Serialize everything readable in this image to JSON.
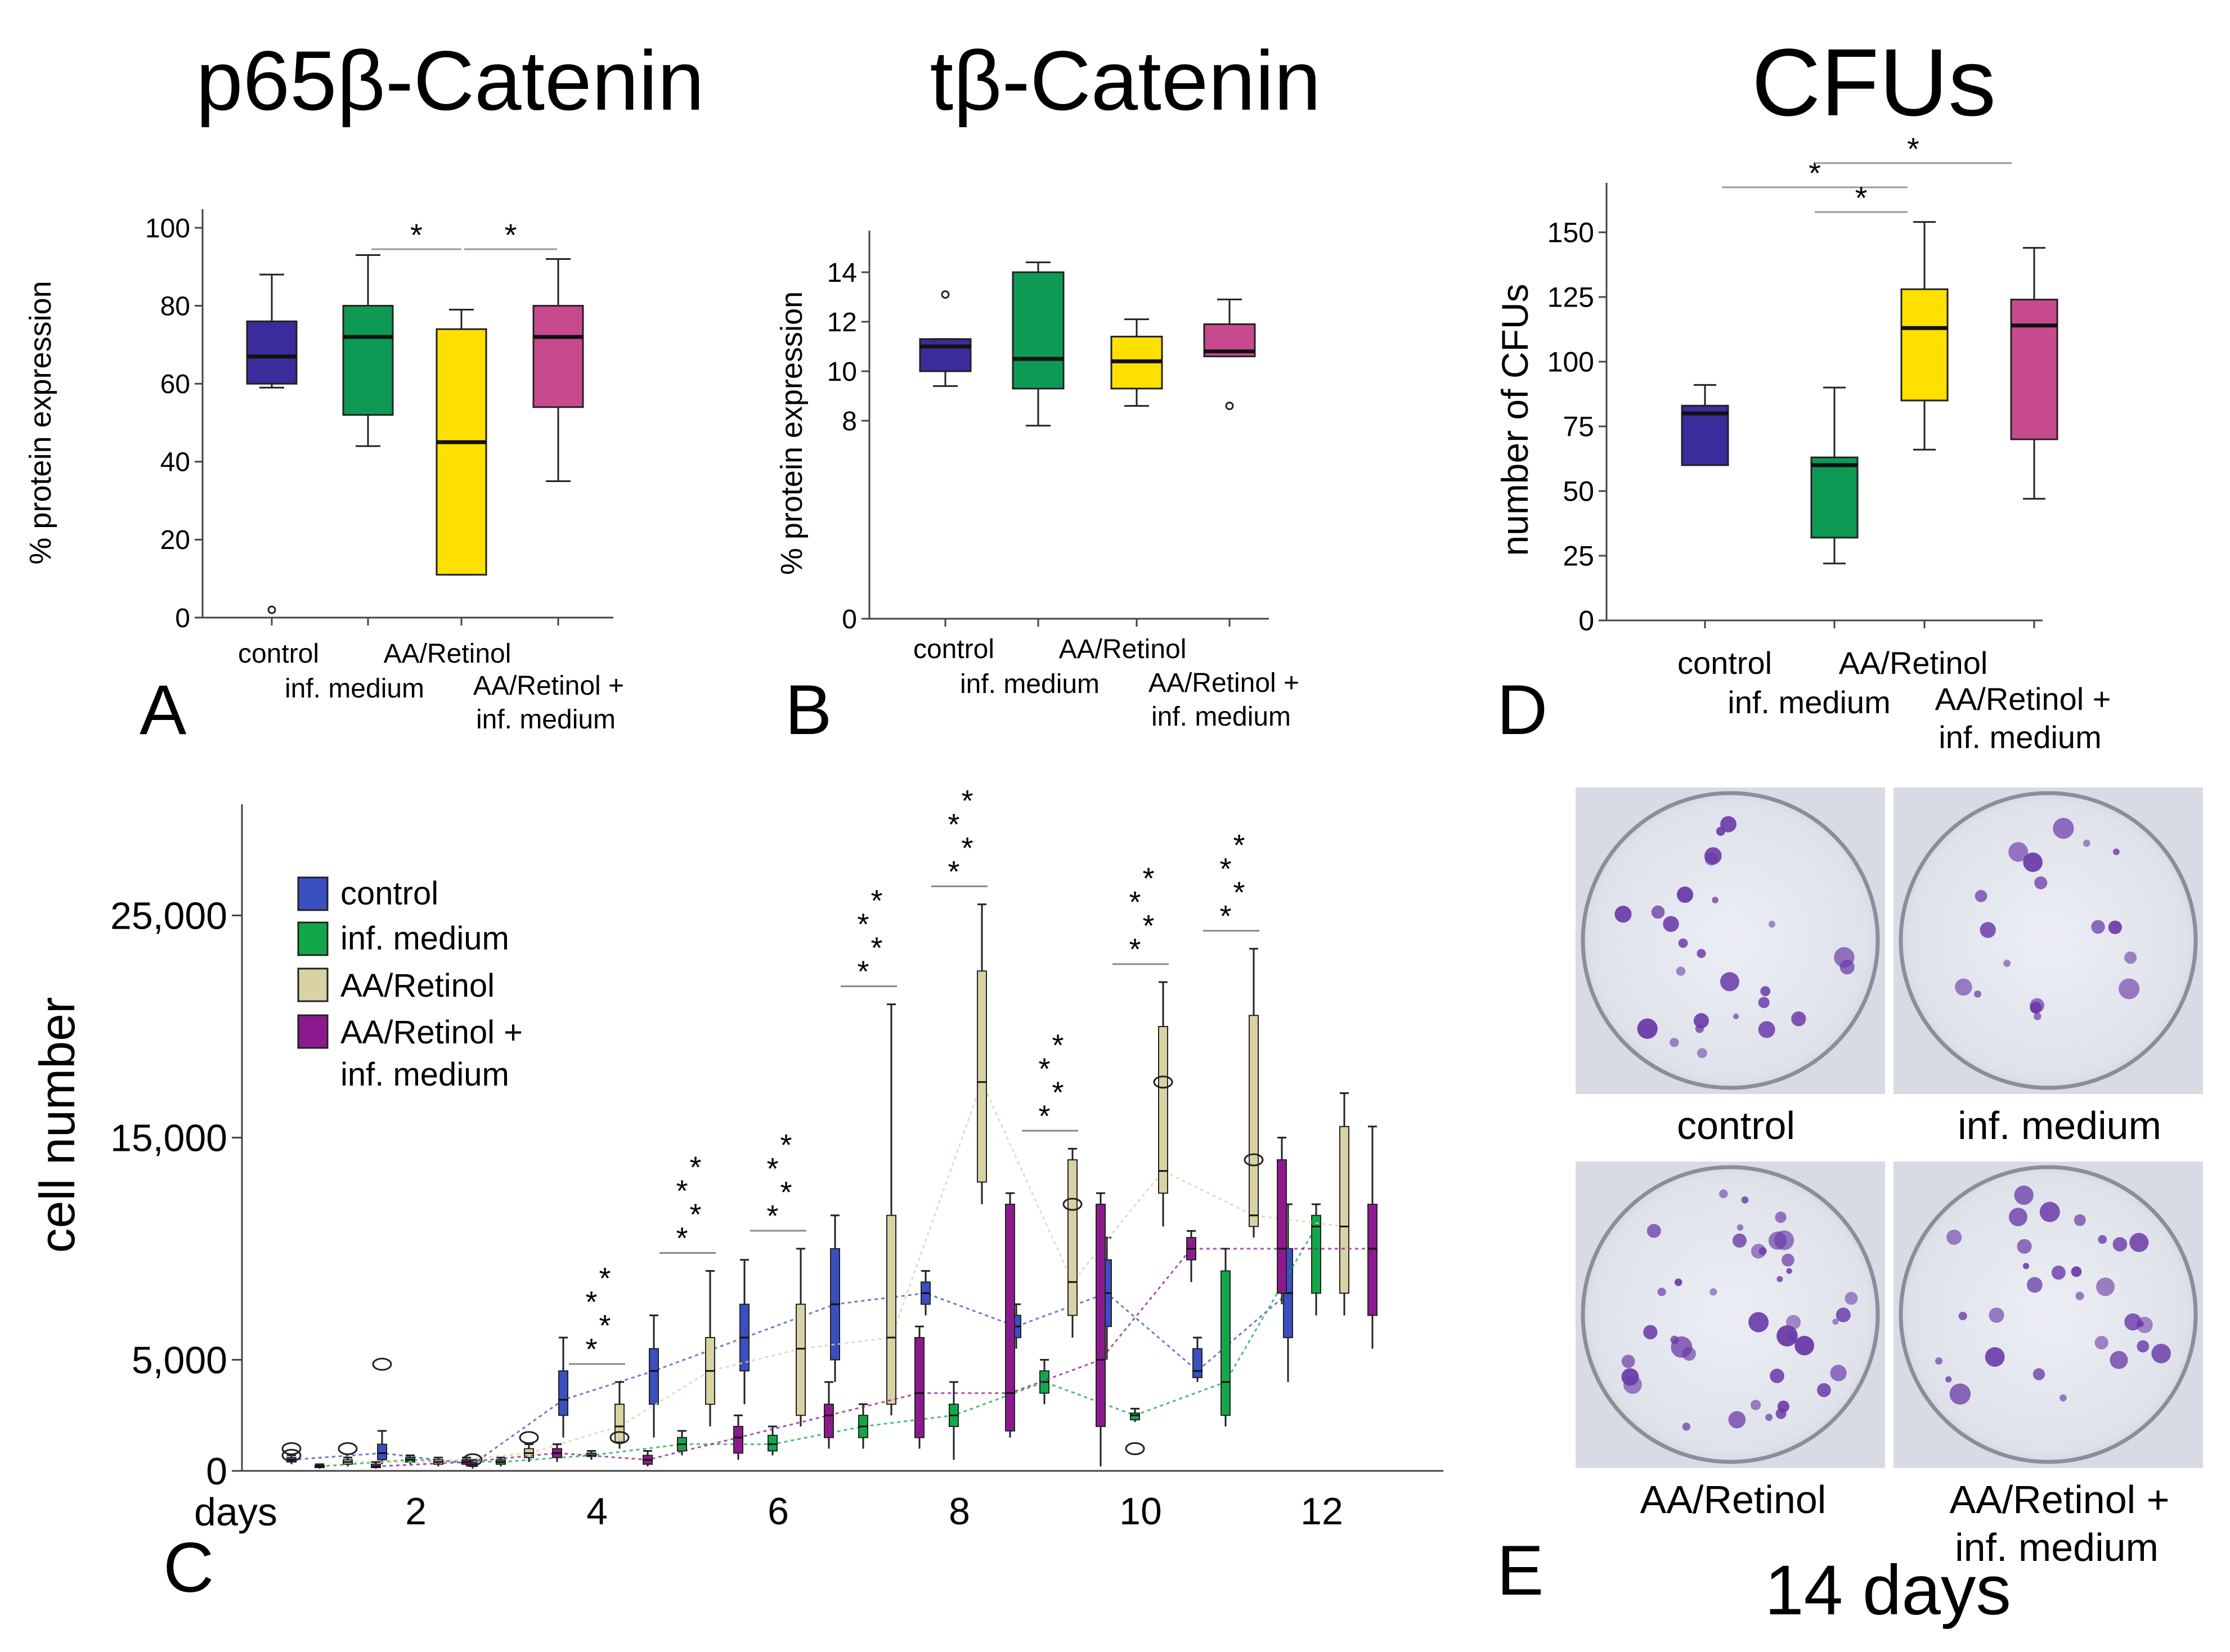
{
  "colors": {
    "control": "#3B2C9C",
    "inf_medium": "#0E9A55",
    "aa_retinol": "#FFE000",
    "aa_retinol_inf": "#C84A8E",
    "c_control": "#3A4FC0",
    "c_inf": "#12A84A",
    "c_aa": "#D8D2A4",
    "c_aainf": "#8C1A8E"
  },
  "panel_letters": {
    "a": "A",
    "b": "B",
    "c": "C",
    "d": "D",
    "e": "E"
  },
  "chart_data": [
    {
      "id": "A",
      "type": "box",
      "title": "p65β-Catenin",
      "ylabel": "% protein expression",
      "ylim": [
        0,
        100
      ],
      "yticks": [
        0,
        20,
        40,
        60,
        80,
        100
      ],
      "groups": [
        {
          "name": "control",
          "min": 59,
          "q1": 60,
          "median": 67,
          "q3": 76,
          "max": 88,
          "outliers": [
            2
          ]
        },
        {
          "name": "inf. medium",
          "min": 44,
          "q1": 52,
          "median": 72,
          "q3": 80,
          "max": 93,
          "outliers": []
        },
        {
          "name": "AA/Retinol",
          "min": 11,
          "q1": 11,
          "median": 45,
          "q3": 74,
          "max": 79,
          "outliers": []
        },
        {
          "name": "AA/Retinol + inf. medium",
          "min": 35,
          "q1": 54,
          "median": 72,
          "q3": 80,
          "max": 92,
          "outliers": []
        }
      ],
      "xlabels": [
        "control",
        "inf. medium",
        "AA/Retinol",
        "AA/Retinol +",
        "inf. medium"
      ],
      "significance": [
        "*",
        "*"
      ]
    },
    {
      "id": "B",
      "type": "box",
      "title": "tβ-Catenin",
      "ylabel": "% protein expression",
      "ylim": [
        0,
        15
      ],
      "yticks": [
        0,
        8,
        10,
        12,
        14
      ],
      "groups": [
        {
          "name": "control",
          "min": 9.4,
          "q1": 10.0,
          "median": 11.0,
          "q3": 11.3,
          "max": 11.3,
          "outliers": [
            13.1
          ]
        },
        {
          "name": "inf. medium",
          "min": 7.8,
          "q1": 9.3,
          "median": 10.5,
          "q3": 14.0,
          "max": 14.4,
          "outliers": []
        },
        {
          "name": "AA/Retinol",
          "min": 8.6,
          "q1": 9.3,
          "median": 10.4,
          "q3": 11.4,
          "max": 12.1,
          "outliers": []
        },
        {
          "name": "AA/Retinol + inf. medium",
          "min": 10.6,
          "q1": 10.6,
          "median": 10.8,
          "q3": 11.9,
          "max": 12.9,
          "outliers": [
            8.6
          ]
        }
      ],
      "xlabels": [
        "control",
        "inf. medium",
        "AA/Retinol",
        "AA/Retinol +",
        "inf. medium"
      ]
    },
    {
      "id": "D",
      "type": "box",
      "title": "CFUs",
      "ylabel": "number of CFUs",
      "ylim": [
        0,
        155
      ],
      "yticks": [
        0,
        25,
        50,
        75,
        100,
        125,
        150
      ],
      "yticklabels": [
        "0",
        "25",
        "50",
        "75",
        "100",
        "125",
        "150"
      ],
      "groups": [
        {
          "name": "control",
          "min": 60,
          "q1": 60,
          "median": 80,
          "q3": 83,
          "max": 91,
          "outliers": []
        },
        {
          "name": "inf. medium",
          "min": 22,
          "q1": 32,
          "median": 60,
          "q3": 63,
          "max": 90,
          "outliers": []
        },
        {
          "name": "AA/Retinol",
          "min": 66,
          "q1": 85,
          "median": 113,
          "q3": 128,
          "max": 154,
          "outliers": []
        },
        {
          "name": "AA/Retinol + inf. medium",
          "min": 47,
          "q1": 70,
          "median": 114,
          "q3": 124,
          "max": 144,
          "outliers": []
        }
      ],
      "xlabels": [
        "control",
        "inf. medium",
        "AA/Retinol",
        "AA/Retinol +",
        "inf. medium"
      ],
      "significance": [
        "*",
        "*",
        "*"
      ]
    },
    {
      "id": "C",
      "type": "box-timecourse",
      "ylabel": "cell number",
      "xlabel": "days",
      "ylim": [
        0,
        30000
      ],
      "yticks": [
        0,
        5000,
        15000,
        25000
      ],
      "yticklabels": [
        "0",
        "5,000",
        "15,000",
        "25,000"
      ],
      "xlim": [
        0.5,
        13
      ],
      "xticks": [
        2,
        4,
        6,
        8,
        10,
        12
      ],
      "xticklabels": [
        "2",
        "4",
        "6",
        "8",
        "10",
        "12"
      ],
      "legend": [
        "control",
        "inf. medium",
        "AA/Retinol",
        "AA/Retinol +",
        "inf. medium"
      ],
      "series": [
        {
          "name": "control",
          "days": [
            1,
            2,
            3,
            4,
            5,
            6,
            7,
            8,
            9,
            10,
            11,
            12
          ],
          "boxes": [
            [
              300,
              400,
              500,
              600,
              700
            ],
            [
              300,
              500,
              800,
              1200,
              1800
            ],
            [
              100,
              200,
              300,
              400,
              500
            ],
            [
              1500,
              2500,
              3200,
              4500,
              6000
            ],
            [
              1500,
              3000,
              4500,
              5500,
              7000
            ],
            [
              3000,
              4500,
              6000,
              7500,
              9500
            ],
            [
              4000,
              5000,
              7500,
              10000,
              11500
            ],
            [
              7000,
              7500,
              8000,
              8500,
              9000
            ],
            [
              5500,
              6000,
              6500,
              7000,
              7500
            ],
            [
              5000,
              6500,
              8000,
              9500,
              10500
            ],
            [
              4000,
              4200,
              4500,
              5500,
              6000
            ],
            [
              4000,
              6000,
              8000,
              10000,
              12000
            ]
          ],
          "outliers": [
            [
              700,
              1000
            ],
            [
              4800
            ],
            [
              500
            ],
            [],
            [],
            [],
            [],
            [],
            [],
            [],
            [],
            []
          ]
        },
        {
          "name": "inf. medium",
          "days": [
            1,
            2,
            3,
            4,
            5,
            6,
            7,
            8,
            9,
            10,
            11,
            12
          ],
          "boxes": [
            [
              100,
              150,
              200,
              250,
              300
            ],
            [
              300,
              400,
              500,
              600,
              700
            ],
            [
              200,
              300,
              400,
              500,
              600
            ],
            [
              500,
              650,
              700,
              800,
              900
            ],
            [
              700,
              900,
              1200,
              1500,
              1800
            ],
            [
              700,
              900,
              1200,
              1600,
              2000
            ],
            [
              1000,
              1500,
              2000,
              2500,
              3000
            ],
            [
              500,
              2000,
              2500,
              3000,
              4000
            ],
            [
              3000,
              3500,
              4000,
              4500,
              5000
            ],
            [
              2200,
              2300,
              2500,
              2600,
              2800
            ],
            [
              2000,
              2500,
              4000,
              9000,
              10000
            ],
            [
              7000,
              8000,
              11000,
              11500,
              12000
            ]
          ],
          "outliers": [
            [],
            [],
            [],
            [],
            [],
            [],
            [],
            [],
            [],
            [
              1000
            ],
            [],
            []
          ]
        },
        {
          "name": "AA/Retinol",
          "days": [
            1,
            2,
            3,
            4,
            5,
            6,
            7,
            8,
            9,
            10,
            11,
            12
          ],
          "boxes": [
            [
              200,
              300,
              400,
              500,
              600
            ],
            [
              200,
              300,
              400,
              500,
              600
            ],
            [
              400,
              600,
              800,
              1000,
              1200
            ],
            [
              1000,
              1300,
              2000,
              3000,
              4000
            ],
            [
              2000,
              3000,
              4500,
              6000,
              9000
            ],
            [
              2000,
              2500,
              5500,
              7500,
              10000
            ],
            [
              2500,
              3000,
              6000,
              11500,
              21000
            ],
            [
              12000,
              13000,
              17500,
              22500,
              25500
            ],
            [
              6000,
              7000,
              8500,
              14000,
              14500
            ],
            [
              11000,
              12500,
              13500,
              20000,
              22000
            ],
            [
              10500,
              11000,
              11500,
              20500,
              23500
            ],
            [
              7000,
              8000,
              11000,
              15500,
              17000
            ]
          ],
          "outliers": [
            [
              1000
            ],
            [],
            [
              1500
            ],
            [
              1500
            ],
            [],
            [],
            [],
            [],
            [
              12000
            ],
            [
              17500
            ],
            [
              14000
            ],
            []
          ]
        },
        {
          "name": "AA/Retinol + inf. medium",
          "days": [
            1,
            2,
            3,
            4,
            5,
            6,
            7,
            8,
            9,
            10,
            11,
            12
          ],
          "boxes": [
            [
              100,
              150,
              200,
              300,
              400
            ],
            [
              200,
              300,
              400,
              500,
              600
            ],
            [
              400,
              600,
              800,
              1000,
              1200
            ],
            [
              200,
              300,
              500,
              700,
              900
            ],
            [
              500,
              800,
              1500,
              2000,
              2500
            ],
            [
              1000,
              1500,
              2500,
              3000,
              4000
            ],
            [
              1000,
              1500,
              3500,
              6000,
              6500
            ],
            [
              1500,
              1800,
              3500,
              12000,
              12500
            ],
            [
              200,
              2000,
              5000,
              12000,
              12500
            ],
            [
              8500,
              9500,
              10000,
              10500,
              10800
            ],
            [
              7500,
              8000,
              10000,
              14000,
              15000
            ],
            [
              5500,
              7000,
              10000,
              12000,
              15500
            ]
          ],
          "outliers": [
            [],
            [],
            [],
            [],
            [],
            [],
            [],
            [],
            [],
            [],
            [],
            []
          ]
        }
      ],
      "significance": [
        "*",
        "*",
        "*",
        "*"
      ]
    }
  ],
  "panel_e": {
    "plates": [
      "control",
      "inf. medium",
      "AA/Retinol",
      "AA/Retinol + inf. medium"
    ],
    "label_aa_inf_line1": "AA/Retinol +",
    "label_aa_inf_line2": "inf. medium",
    "caption": "14 days"
  }
}
